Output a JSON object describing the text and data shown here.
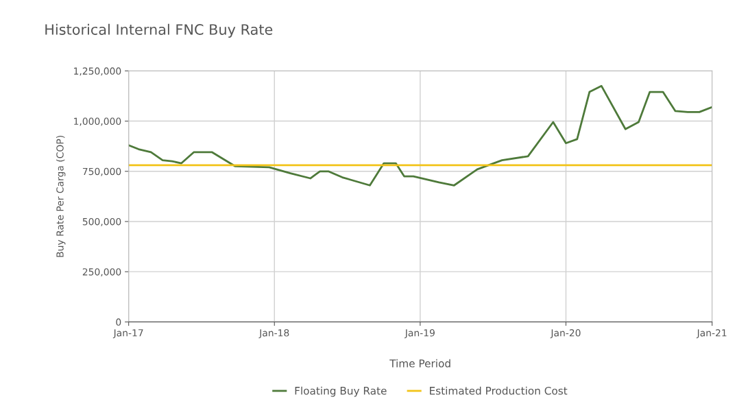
{
  "chart_data": {
    "type": "line",
    "title": "Historical Internal FNC Buy Rate",
    "xlabel": "Time Period",
    "ylabel": "Buy Rate Per Carga (COP)",
    "series": [
      {
        "name": "Floating Buy Rate",
        "color": "#4e7a3a",
        "x": [
          "2017-01-01",
          "2017-01-26",
          "2017-02-26",
          "2017-03-27",
          "2017-04-20",
          "2017-05-13",
          "2017-06-13",
          "2017-07-29",
          "2017-09-25",
          "2017-12-19",
          "2018-02-10",
          "2018-04-01",
          "2018-04-25",
          "2018-05-16",
          "2018-06-20",
          "2018-08-28",
          "2018-10-02",
          "2018-11-01",
          "2018-11-22",
          "2018-12-15",
          "2019-02-17",
          "2019-03-27",
          "2019-05-24",
          "2019-07-25",
          "2019-09-28",
          "2019-11-30",
          "2020-01-01",
          "2020-01-29",
          "2020-02-29",
          "2020-03-30",
          "2020-05-29",
          "2020-07-01",
          "2020-07-29",
          "2020-08-31",
          "2020-10-01",
          "2020-11-01",
          "2020-11-30",
          "2021-01-01"
        ],
        "values": [
          880000,
          860000,
          845000,
          805000,
          800000,
          790000,
          845000,
          845000,
          775000,
          770000,
          740000,
          715000,
          750000,
          750000,
          720000,
          680000,
          790000,
          790000,
          725000,
          725000,
          695000,
          680000,
          760000,
          805000,
          825000,
          995000,
          890000,
          910000,
          1145000,
          1175000,
          960000,
          995000,
          1145000,
          1145000,
          1050000,
          1045000,
          1045000,
          1070000
        ]
      },
      {
        "name": "Estimated Production Cost",
        "color": "#f2c418",
        "x": [
          "2017-01-01",
          "2021-01-01"
        ],
        "values": [
          780000,
          780000
        ]
      }
    ],
    "xlim": [
      "2017-01-01",
      "2021-01-01"
    ],
    "xticks": [
      {
        "value": "2017-01-01",
        "label": "Jan-17"
      },
      {
        "value": "2018-01-01",
        "label": "Jan-18"
      },
      {
        "value": "2019-01-01",
        "label": "Jan-19"
      },
      {
        "value": "2020-01-01",
        "label": "Jan-20"
      },
      {
        "value": "2021-01-01",
        "label": "Jan-21"
      }
    ],
    "ylim": [
      0,
      1250000
    ],
    "yticks": [
      {
        "value": 0,
        "label": "0"
      },
      {
        "value": 250000,
        "label": "250,000"
      },
      {
        "value": 500000,
        "label": "500,000"
      },
      {
        "value": 750000,
        "label": "750,000"
      },
      {
        "value": 1000000,
        "label": "1,000,000"
      },
      {
        "value": 1250000,
        "label": "1,250,000"
      }
    ],
    "grid": true,
    "legend": "bottom"
  }
}
